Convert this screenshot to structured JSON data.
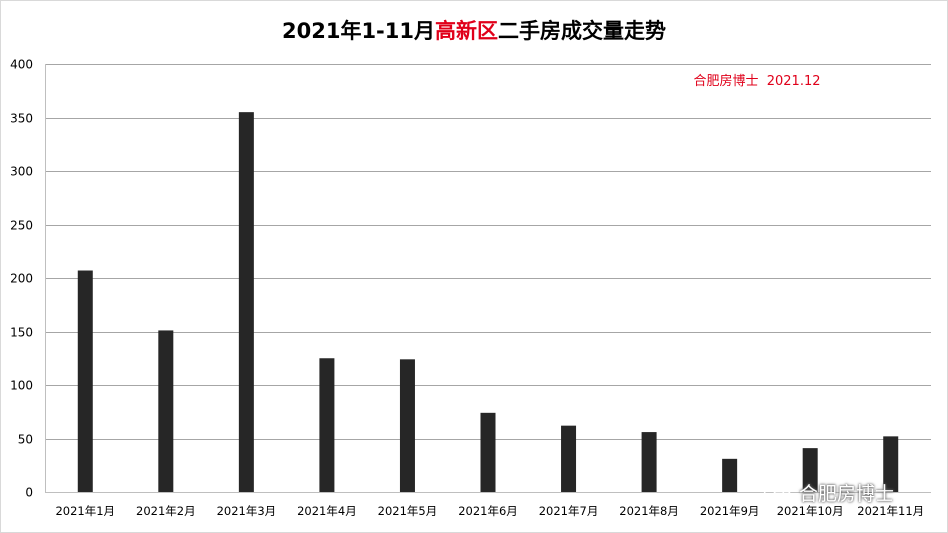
{
  "title": {
    "prefix": "2021年1-11月",
    "highlight": "高新区",
    "suffix": "二手房成交量走势",
    "highlight_color": "#e0001a"
  },
  "annotation": "合肥房博士  2021.12",
  "annotation_color": "#e0001a",
  "watermark": {
    "text": "合肥房博士",
    "icon": "wechat-icon"
  },
  "chart_data": {
    "type": "bar",
    "categories": [
      "2021年1月",
      "2021年2月",
      "2021年3月",
      "2021年4月",
      "2021年5月",
      "2021年6月",
      "2021年7月",
      "2021年8月",
      "2021年9月",
      "2021年10月",
      "2021年11月"
    ],
    "values": [
      207,
      151,
      355,
      125,
      124,
      74,
      62,
      56,
      31,
      41,
      52
    ],
    "title": "2021年1-11月高新区二手房成交量走势",
    "xlabel": "",
    "ylabel": "",
    "ylim": [
      0,
      400
    ],
    "yticks": [
      0,
      50,
      100,
      150,
      200,
      250,
      300,
      350,
      400
    ],
    "grid": true,
    "bar_color": "#262626",
    "legend": "none"
  }
}
